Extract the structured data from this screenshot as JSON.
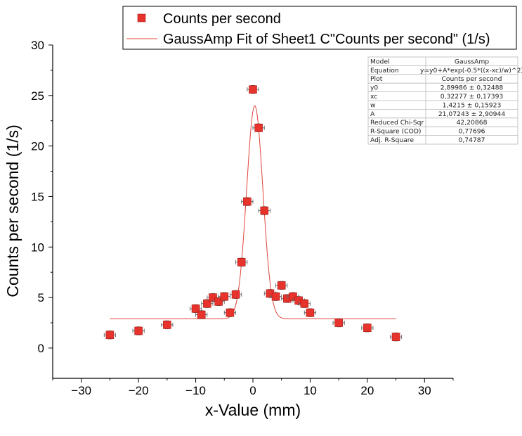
{
  "chart_data": {
    "type": "scatter",
    "title": "",
    "xlabel": "x-Value (mm)",
    "ylabel": "Counts per second (1/s)",
    "xlim": [
      -35,
      35
    ],
    "ylim": [
      -3,
      30
    ],
    "x_ticks": [
      -30,
      -20,
      -10,
      0,
      10,
      20,
      30
    ],
    "y_ticks": [
      0,
      5,
      10,
      15,
      20,
      25,
      30
    ],
    "x_tick_labels": [
      "−30",
      "−20",
      "−10",
      "0",
      "10",
      "20",
      "30"
    ],
    "y_tick_labels": [
      "0",
      "5",
      "10",
      "15",
      "20",
      "25",
      "30"
    ],
    "grid": false,
    "legend_placement": "top",
    "series": [
      {
        "name": "Counts per second",
        "type": "scatter",
        "color": "#e8322c",
        "x_error": 1,
        "y_error": 0.4,
        "points": [
          [
            -25,
            1.3
          ],
          [
            -20,
            1.7
          ],
          [
            -15,
            2.3
          ],
          [
            -10,
            3.9
          ],
          [
            -9,
            3.3
          ],
          [
            -8,
            4.4
          ],
          [
            -7,
            5.0
          ],
          [
            -6,
            4.6
          ],
          [
            -5,
            5.1
          ],
          [
            -4,
            3.5
          ],
          [
            -3,
            5.3
          ],
          [
            -2,
            8.5
          ],
          [
            -1,
            14.5
          ],
          [
            0,
            25.6
          ],
          [
            1,
            21.8
          ],
          [
            2,
            13.6
          ],
          [
            3,
            5.4
          ],
          [
            4,
            5.1
          ],
          [
            5,
            6.2
          ],
          [
            6,
            4.9
          ],
          [
            7,
            5.1
          ],
          [
            8,
            4.7
          ],
          [
            9,
            4.4
          ],
          [
            10,
            3.5
          ],
          [
            15,
            2.5
          ],
          [
            20,
            2.0
          ],
          [
            25,
            1.1
          ]
        ]
      },
      {
        "name": "GaussAmp Fit of Sheet1 C\"Counts per second\" (1/s)",
        "type": "line",
        "color": "#e0443a",
        "model": {
          "y0": 2.89986,
          "xc": 0.32277,
          "w": 1.4215,
          "A": 21.07243
        },
        "x_range": [
          -25,
          25
        ]
      }
    ]
  },
  "stats_table": [
    [
      "Model",
      "GaussAmp"
    ],
    [
      "Equation",
      "y=y0+A*exp(-0.5*((x-xc)/w)^2)"
    ],
    [
      "Plot",
      "Counts per second"
    ],
    [
      "y0",
      "2,89986 ± 0,32488"
    ],
    [
      "xc",
      "0,32277 ± 0,17393"
    ],
    [
      "w",
      "1,4215 ± 0,15923"
    ],
    [
      "A",
      "21,07243 ± 2,90944"
    ],
    [
      "Reduced Chi-Sqr",
      "42,20868"
    ],
    [
      "R-Square (COD)",
      "0,77696"
    ],
    [
      "Adj. R-Square",
      "0,74787"
    ]
  ]
}
